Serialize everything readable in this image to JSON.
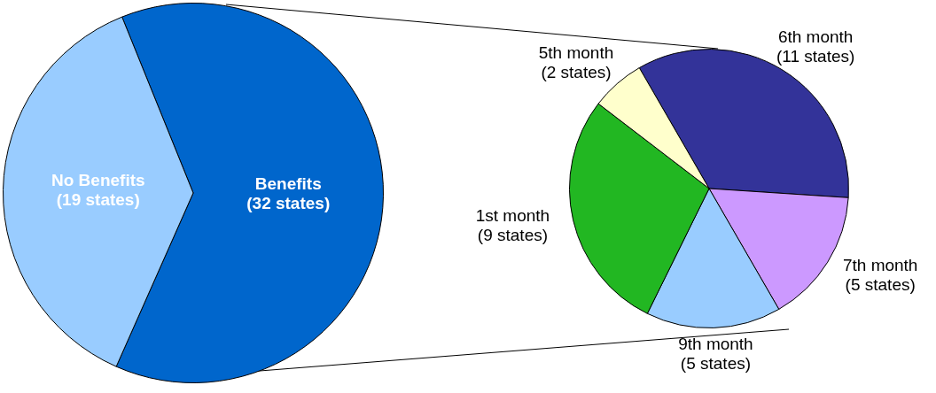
{
  "chart_data": [
    {
      "type": "pie",
      "categories": [
        "Benefits",
        "No Benefits"
      ],
      "values": [
        32,
        19
      ],
      "colors": [
        "#0066cc",
        "#99ccff"
      ],
      "value_labels": [
        "(32 states)",
        "(19 states)"
      ]
    },
    {
      "type": "pie",
      "categories": [
        "6th month",
        "7th month",
        "9th month",
        "1st month",
        "5th month"
      ],
      "values": [
        11,
        5,
        5,
        9,
        2
      ],
      "colors": [
        "#333399",
        "#cc99ff",
        "#99ccff",
        "#22b722",
        "#ffffcc"
      ],
      "value_labels": [
        "(11 states)",
        "(5 states)",
        "(5 states)",
        "(9 states)",
        "(2 states)"
      ]
    }
  ]
}
